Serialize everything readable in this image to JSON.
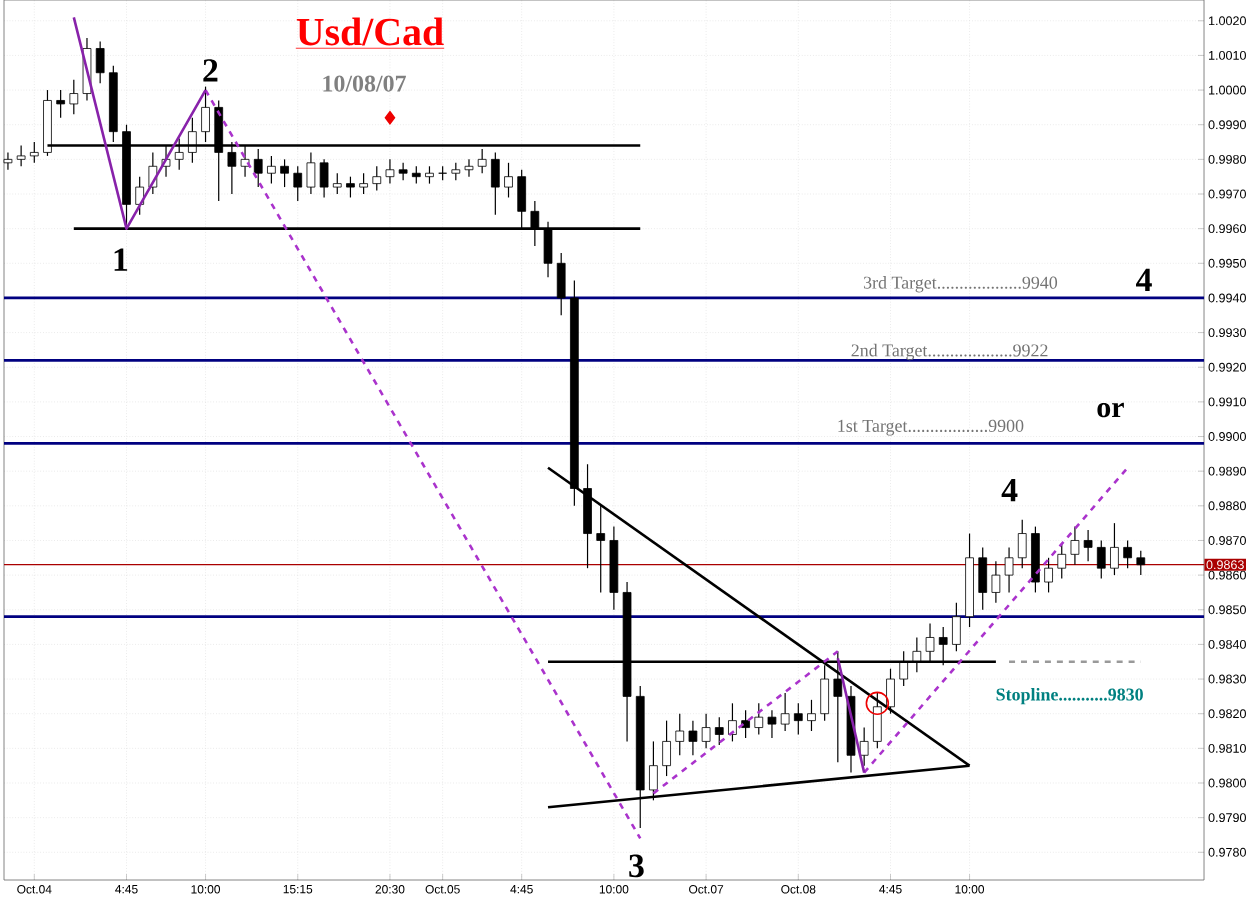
{
  "chart_data": {
    "type": "candlestick",
    "title": "Usd/Cad",
    "subtitle": "10/08/07",
    "color": "#000000",
    "grid": true,
    "ylim": [
      0.9772,
      1.0026
    ],
    "categories": [
      null,
      null,
      "Oct.04",
      null,
      null,
      null,
      null,
      null,
      null,
      "4:45",
      null,
      null,
      null,
      null,
      null,
      "10:00",
      null,
      null,
      null,
      null,
      null,
      null,
      "15:15",
      null,
      null,
      null,
      null,
      null,
      null,
      "20:30",
      null,
      null,
      null,
      "Oct.05",
      null,
      null,
      null,
      null,
      null,
      "4:45",
      null,
      null,
      null,
      null,
      null,
      null,
      "10:00",
      null,
      null,
      null,
      null,
      null,
      null,
      "Oct.07",
      null,
      null,
      null,
      null,
      null,
      null,
      "Oct.08",
      null,
      null,
      null,
      null,
      null,
      null,
      "4:45",
      null,
      null,
      null,
      null,
      null,
      "10:00",
      null,
      null,
      null,
      null,
      null,
      null,
      null,
      null,
      null,
      null,
      null,
      null,
      null
    ],
    "yticks": [
      {
        "value": 0.978,
        "label": "0.9780"
      },
      {
        "value": 0.979,
        "label": "0.9790"
      },
      {
        "value": 0.98,
        "label": "0.9800"
      },
      {
        "value": 0.981,
        "label": "0.9810"
      },
      {
        "value": 0.982,
        "label": "0.9820"
      },
      {
        "value": 0.983,
        "label": "0.9830"
      },
      {
        "value": 0.984,
        "label": "0.9840"
      },
      {
        "value": 0.985,
        "label": "0.9850"
      },
      {
        "value": 0.986,
        "label": "0.9860"
      },
      {
        "value": 0.987,
        "label": "0.9870"
      },
      {
        "value": 0.988,
        "label": "0.9880"
      },
      {
        "value": 0.989,
        "label": "0.9890"
      },
      {
        "value": 0.99,
        "label": "0.9900"
      },
      {
        "value": 0.991,
        "label": "0.9910"
      },
      {
        "value": 0.992,
        "label": "0.9920"
      },
      {
        "value": 0.993,
        "label": "0.9930"
      },
      {
        "value": 0.994,
        "label": "0.9940"
      },
      {
        "value": 0.995,
        "label": "0.9950"
      },
      {
        "value": 0.996,
        "label": "0.9960"
      },
      {
        "value": 0.997,
        "label": "0.9970"
      },
      {
        "value": 0.998,
        "label": "0.9980"
      },
      {
        "value": 0.999,
        "label": "0.9990"
      },
      {
        "value": 1.0,
        "label": "1.0000"
      },
      {
        "value": 1.001,
        "label": "1.0010"
      },
      {
        "value": 1.002,
        "label": "1.0020"
      }
    ],
    "ohlc": [
      [
        0.9979,
        0.9982,
        0.9977,
        0.998
      ],
      [
        0.998,
        0.9984,
        0.9978,
        0.9981
      ],
      [
        0.9981,
        0.9985,
        0.9979,
        0.9982
      ],
      [
        0.9982,
        1.0,
        0.9981,
        0.9997
      ],
      [
        0.9997,
        1.0,
        0.9992,
        0.9996
      ],
      [
        0.9996,
        1.0003,
        0.9993,
        0.9999
      ],
      [
        0.9999,
        1.0015,
        0.9997,
        1.0012
      ],
      [
        1.0012,
        1.0014,
        1.0002,
        1.0005
      ],
      [
        1.0005,
        1.0007,
        0.9985,
        0.9988
      ],
      [
        0.9988,
        0.999,
        0.9961,
        0.9967
      ],
      [
        0.9967,
        0.9975,
        0.9964,
        0.9972
      ],
      [
        0.9972,
        0.9982,
        0.997,
        0.9978
      ],
      [
        0.9978,
        0.9984,
        0.9975,
        0.998
      ],
      [
        0.998,
        0.9986,
        0.9977,
        0.9982
      ],
      [
        0.9982,
        0.9992,
        0.9979,
        0.9988
      ],
      [
        0.9988,
        1.0001,
        0.9985,
        0.9995
      ],
      [
        0.9995,
        0.9997,
        0.9968,
        0.9982
      ],
      [
        0.9982,
        0.9985,
        0.997,
        0.9978
      ],
      [
        0.9978,
        0.9984,
        0.9975,
        0.998
      ],
      [
        0.998,
        0.9983,
        0.9972,
        0.9976
      ],
      [
        0.9976,
        0.9981,
        0.9973,
        0.9978
      ],
      [
        0.9978,
        0.998,
        0.9972,
        0.9976
      ],
      [
        0.9976,
        0.9978,
        0.9968,
        0.9972
      ],
      [
        0.9972,
        0.9982,
        0.997,
        0.9979
      ],
      [
        0.9979,
        0.998,
        0.9969,
        0.9972
      ],
      [
        0.9972,
        0.9976,
        0.997,
        0.9973
      ],
      [
        0.9973,
        0.9975,
        0.9969,
        0.9972
      ],
      [
        0.9972,
        0.9976,
        0.997,
        0.9973
      ],
      [
        0.9973,
        0.9978,
        0.9971,
        0.9975
      ],
      [
        0.9975,
        0.998,
        0.9973,
        0.9977
      ],
      [
        0.9977,
        0.9979,
        0.9974,
        0.9976
      ],
      [
        0.9976,
        0.9978,
        0.9973,
        0.9975
      ],
      [
        0.9975,
        0.9978,
        0.9973,
        0.9976
      ],
      [
        0.9976,
        0.9978,
        0.9974,
        0.9976
      ],
      [
        0.9976,
        0.9979,
        0.9974,
        0.9977
      ],
      [
        0.9977,
        0.998,
        0.9975,
        0.9978
      ],
      [
        0.9978,
        0.9983,
        0.9976,
        0.998
      ],
      [
        0.998,
        0.9982,
        0.9964,
        0.9972
      ],
      [
        0.9972,
        0.9979,
        0.9969,
        0.9975
      ],
      [
        0.9975,
        0.9977,
        0.996,
        0.9965
      ],
      [
        0.9965,
        0.9968,
        0.9955,
        0.996
      ],
      [
        0.996,
        0.9962,
        0.9946,
        0.995
      ],
      [
        0.995,
        0.9953,
        0.9935,
        0.994
      ],
      [
        0.994,
        0.9945,
        0.988,
        0.9885
      ],
      [
        0.9885,
        0.9892,
        0.9862,
        0.9872
      ],
      [
        0.9872,
        0.988,
        0.9855,
        0.987
      ],
      [
        0.987,
        0.9874,
        0.985,
        0.9855
      ],
      [
        0.9855,
        0.9858,
        0.9812,
        0.9825
      ],
      [
        0.9825,
        0.9828,
        0.9787,
        0.9798
      ],
      [
        0.9798,
        0.9812,
        0.9795,
        0.9805
      ],
      [
        0.9805,
        0.9818,
        0.9802,
        0.9812
      ],
      [
        0.9812,
        0.982,
        0.9808,
        0.9815
      ],
      [
        0.9815,
        0.9818,
        0.9808,
        0.9812
      ],
      [
        0.9812,
        0.982,
        0.981,
        0.9816
      ],
      [
        0.9816,
        0.9819,
        0.9811,
        0.9814
      ],
      [
        0.9814,
        0.9823,
        0.9812,
        0.9818
      ],
      [
        0.9818,
        0.9821,
        0.9813,
        0.9816
      ],
      [
        0.9816,
        0.9823,
        0.9814,
        0.9819
      ],
      [
        0.9819,
        0.9821,
        0.9813,
        0.9817
      ],
      [
        0.9817,
        0.9826,
        0.9815,
        0.982
      ],
      [
        0.982,
        0.9823,
        0.9814,
        0.9818
      ],
      [
        0.9818,
        0.9824,
        0.9815,
        0.982
      ],
      [
        0.982,
        0.9834,
        0.9818,
        0.983
      ],
      [
        0.983,
        0.9838,
        0.9806,
        0.9825
      ],
      [
        0.9825,
        0.9828,
        0.9803,
        0.9808
      ],
      [
        0.9808,
        0.9816,
        0.9805,
        0.9812
      ],
      [
        0.9812,
        0.9826,
        0.981,
        0.9822
      ],
      [
        0.9822,
        0.9833,
        0.982,
        0.983
      ],
      [
        0.983,
        0.9838,
        0.9828,
        0.9835
      ],
      [
        0.9835,
        0.9842,
        0.9832,
        0.9838
      ],
      [
        0.9838,
        0.9846,
        0.9835,
        0.9842
      ],
      [
        0.9842,
        0.9845,
        0.9834,
        0.984
      ],
      [
        0.984,
        0.9852,
        0.9838,
        0.9848
      ],
      [
        0.9848,
        0.9872,
        0.9845,
        0.9865
      ],
      [
        0.9865,
        0.9868,
        0.985,
        0.9855
      ],
      [
        0.9855,
        0.9864,
        0.9852,
        0.986
      ],
      [
        0.986,
        0.9868,
        0.9855,
        0.9865
      ],
      [
        0.9865,
        0.9876,
        0.9862,
        0.9872
      ],
      [
        0.9872,
        0.9874,
        0.9855,
        0.9858
      ],
      [
        0.9858,
        0.9865,
        0.9855,
        0.9862
      ],
      [
        0.9862,
        0.9869,
        0.9859,
        0.9866
      ],
      [
        0.9866,
        0.9874,
        0.9863,
        0.987
      ],
      [
        0.987,
        0.9873,
        0.9864,
        0.9868
      ],
      [
        0.9868,
        0.987,
        0.9859,
        0.9862
      ],
      [
        0.9862,
        0.9875,
        0.986,
        0.9868
      ],
      [
        0.9868,
        0.987,
        0.9862,
        0.9865
      ],
      [
        0.9865,
        0.9867,
        0.986,
        0.9863
      ]
    ],
    "series": [
      {
        "type": "line",
        "color": "#000000",
        "values": [
          null,
          null,
          null,
          0.9984,
          null,
          null,
          null,
          null,
          null,
          null,
          null,
          null,
          null,
          null,
          null,
          null,
          null,
          null,
          null,
          null,
          null,
          null,
          null,
          null,
          null,
          null,
          null,
          null,
          null,
          null,
          null,
          null,
          null,
          null,
          null,
          null,
          null,
          null,
          null,
          null,
          null,
          null,
          null,
          null,
          null,
          null,
          null,
          null,
          0.9984,
          null,
          null,
          null,
          null,
          null,
          null,
          null,
          null,
          null,
          null,
          null,
          null,
          null,
          null,
          null,
          null,
          null,
          null,
          null,
          null,
          null,
          null,
          null,
          null,
          null,
          null,
          null,
          null,
          null,
          null,
          null,
          null,
          null,
          null,
          null,
          null,
          null,
          null
        ]
      },
      {
        "type": "line",
        "color": "#000000",
        "values": [
          null,
          null,
          null,
          null,
          null,
          0.996,
          null,
          null,
          null,
          null,
          null,
          null,
          null,
          null,
          null,
          null,
          null,
          null,
          null,
          null,
          null,
          null,
          null,
          null,
          null,
          null,
          null,
          null,
          null,
          null,
          null,
          null,
          null,
          null,
          null,
          null,
          null,
          null,
          null,
          null,
          null,
          null,
          null,
          null,
          null,
          null,
          null,
          null,
          0.996,
          null,
          null,
          null,
          null,
          null,
          null,
          null,
          null,
          null,
          null,
          null,
          null,
          null,
          null,
          null,
          null,
          null,
          null,
          null,
          null,
          null,
          null,
          null,
          null,
          null,
          null,
          null,
          null,
          null,
          null,
          null,
          null,
          null,
          null,
          null,
          null,
          null,
          null
        ]
      },
      {
        "type": "line",
        "color": "#000000",
        "values": [
          null,
          null,
          null,
          null,
          null,
          null,
          null,
          null,
          null,
          null,
          null,
          null,
          null,
          null,
          null,
          null,
          null,
          null,
          null,
          null,
          null,
          null,
          null,
          null,
          null,
          null,
          null,
          null,
          null,
          null,
          null,
          null,
          null,
          null,
          null,
          null,
          null,
          null,
          null,
          null,
          null,
          0.9891,
          null,
          null,
          null,
          null,
          null,
          null,
          null,
          null,
          null,
          null,
          null,
          null,
          null,
          null,
          null,
          null,
          null,
          null,
          null,
          null,
          null,
          null,
          null,
          null,
          null,
          null,
          null,
          null,
          null,
          null,
          null,
          0.9805,
          null,
          null,
          null,
          null,
          null,
          null,
          null,
          null,
          null,
          null,
          null,
          null,
          null
        ]
      },
      {
        "type": "line",
        "color": "#000000",
        "values": [
          null,
          null,
          null,
          null,
          null,
          null,
          null,
          null,
          null,
          null,
          null,
          null,
          null,
          null,
          null,
          null,
          null,
          null,
          null,
          null,
          null,
          null,
          null,
          null,
          null,
          null,
          null,
          null,
          null,
          null,
          null,
          null,
          null,
          null,
          null,
          null,
          null,
          null,
          null,
          null,
          null,
          0.9793,
          null,
          null,
          null,
          null,
          null,
          null,
          null,
          null,
          null,
          null,
          null,
          null,
          null,
          null,
          null,
          null,
          null,
          null,
          null,
          null,
          null,
          null,
          null,
          null,
          null,
          null,
          null,
          null,
          null,
          null,
          null,
          0.9805,
          null,
          null,
          null,
          null,
          null,
          null,
          null,
          null,
          null,
          null,
          null,
          null,
          null
        ]
      },
      {
        "type": "line",
        "color": "#000000",
        "values": [
          null,
          null,
          null,
          null,
          null,
          null,
          null,
          null,
          null,
          null,
          null,
          null,
          null,
          null,
          null,
          null,
          null,
          null,
          null,
          null,
          null,
          null,
          null,
          null,
          null,
          null,
          null,
          null,
          null,
          null,
          null,
          null,
          null,
          null,
          null,
          null,
          null,
          null,
          null,
          null,
          null,
          0.9835,
          null,
          null,
          null,
          null,
          null,
          null,
          null,
          null,
          null,
          null,
          null,
          null,
          null,
          null,
          null,
          null,
          null,
          null,
          null,
          null,
          null,
          null,
          null,
          null,
          null,
          null,
          null,
          null,
          null,
          null,
          null,
          null,
          null,
          0.9835,
          null,
          null,
          null,
          null,
          null,
          null,
          null,
          null,
          null,
          null,
          null
        ]
      },
      {
        "type": "line",
        "color": "#999999",
        "line_style": "dashed",
        "values": [
          null,
          null,
          null,
          null,
          null,
          null,
          null,
          null,
          null,
          null,
          null,
          null,
          null,
          null,
          null,
          null,
          null,
          null,
          null,
          null,
          null,
          null,
          null,
          null,
          null,
          null,
          null,
          null,
          null,
          null,
          null,
          null,
          null,
          null,
          null,
          null,
          null,
          null,
          null,
          null,
          null,
          null,
          null,
          null,
          null,
          null,
          null,
          null,
          null,
          null,
          null,
          null,
          null,
          null,
          null,
          null,
          null,
          null,
          null,
          null,
          null,
          null,
          null,
          null,
          null,
          null,
          null,
          null,
          null,
          null,
          null,
          null,
          null,
          null,
          null,
          null,
          0.9835,
          null,
          null,
          null,
          null,
          null,
          null,
          null,
          null,
          null,
          0.9835
        ]
      },
      {
        "type": "line",
        "color": "#aa33cc",
        "line_style": "dashed",
        "values": [
          null,
          null,
          null,
          null,
          null,
          null,
          null,
          null,
          null,
          null,
          null,
          null,
          null,
          null,
          null,
          1.0,
          null,
          null,
          null,
          null,
          null,
          null,
          null,
          null,
          null,
          null,
          null,
          null,
          null,
          null,
          null,
          null,
          null,
          null,
          null,
          null,
          null,
          null,
          null,
          null,
          null,
          null,
          null,
          null,
          null,
          null,
          null,
          null,
          0.9784,
          null,
          null,
          null,
          null,
          null,
          null,
          null,
          null,
          null,
          null,
          null,
          null,
          null,
          null,
          null,
          null,
          null,
          null,
          null,
          null,
          null,
          null,
          null,
          null,
          null,
          null,
          null,
          null,
          null,
          null,
          null,
          null,
          null,
          null,
          null,
          null,
          null,
          null
        ]
      },
      {
        "type": "line",
        "color": "#aa33cc",
        "line_style": "dashed",
        "values": [
          null,
          null,
          null,
          null,
          null,
          null,
          null,
          null,
          null,
          null,
          null,
          null,
          null,
          null,
          null,
          null,
          null,
          null,
          null,
          null,
          null,
          null,
          null,
          null,
          null,
          null,
          null,
          null,
          null,
          null,
          null,
          null,
          null,
          null,
          null,
          null,
          null,
          null,
          null,
          null,
          null,
          null,
          null,
          null,
          null,
          null,
          null,
          null,
          null,
          0.9797,
          null,
          null,
          null,
          null,
          null,
          null,
          null,
          null,
          null,
          null,
          null,
          null,
          null,
          0.9838,
          null,
          null,
          null,
          null,
          null,
          null,
          null,
          null,
          null,
          null,
          null,
          null,
          null,
          null,
          null,
          null,
          null,
          null,
          null,
          null,
          null,
          null,
          null
        ]
      },
      {
        "type": "line",
        "color": "#aa33cc",
        "line_style": "dashed",
        "values": [
          null,
          null,
          null,
          null,
          null,
          null,
          null,
          null,
          null,
          null,
          null,
          null,
          null,
          null,
          null,
          null,
          null,
          null,
          null,
          null,
          null,
          null,
          null,
          null,
          null,
          null,
          null,
          null,
          null,
          null,
          null,
          null,
          null,
          null,
          null,
          null,
          null,
          null,
          null,
          null,
          null,
          null,
          null,
          null,
          null,
          null,
          null,
          null,
          null,
          null,
          null,
          null,
          null,
          null,
          null,
          null,
          null,
          null,
          null,
          null,
          null,
          null,
          null,
          null,
          null,
          0.9803,
          null,
          null,
          null,
          null,
          null,
          null,
          null,
          null,
          null,
          null,
          null,
          null,
          null,
          null,
          null,
          null,
          null,
          null,
          null,
          0.9891,
          null
        ]
      },
      {
        "type": "line",
        "color": "#8822aa",
        "values": [
          null,
          null,
          null,
          null,
          null,
          1.0021,
          null,
          null,
          null,
          0.996,
          null,
          null,
          null,
          null,
          null,
          1.0,
          null,
          null,
          null,
          null,
          null,
          null,
          null,
          null,
          null,
          null,
          null,
          null,
          null,
          null,
          null,
          null,
          null,
          null,
          null,
          null,
          null,
          null,
          null,
          null,
          null,
          null,
          null,
          null,
          null,
          null,
          null,
          null,
          null,
          null,
          null,
          null,
          null,
          null,
          null,
          null,
          null,
          null,
          null,
          null,
          null,
          null,
          null,
          null,
          null,
          null,
          null,
          null,
          null,
          null,
          null,
          null,
          null,
          null,
          null,
          null,
          null,
          null,
          null,
          null,
          null,
          null,
          null,
          null,
          null,
          null,
          null
        ]
      },
      {
        "type": "line",
        "color": "#8822aa",
        "values": [
          null,
          null,
          null,
          null,
          null,
          null,
          null,
          null,
          null,
          null,
          null,
          null,
          null,
          null,
          null,
          null,
          null,
          null,
          null,
          null,
          null,
          null,
          null,
          null,
          null,
          null,
          null,
          null,
          null,
          null,
          null,
          null,
          null,
          null,
          null,
          null,
          null,
          null,
          null,
          null,
          null,
          null,
          null,
          null,
          null,
          null,
          null,
          null,
          null,
          null,
          null,
          null,
          null,
          null,
          null,
          null,
          null,
          null,
          null,
          null,
          null,
          null,
          null,
          0.9836,
          null,
          0.9803,
          null,
          null,
          null,
          null,
          null,
          null,
          null,
          null,
          null,
          null,
          null,
          null,
          null,
          null,
          null,
          null,
          null,
          null,
          null,
          null,
          null
        ]
      },
      {
        "type": "scatter",
        "color": "#ee0000",
        "marker": "diamond",
        "values": [
          null,
          null,
          null,
          null,
          null,
          null,
          null,
          null,
          null,
          null,
          null,
          null,
          null,
          null,
          null,
          null,
          null,
          null,
          null,
          null,
          null,
          null,
          null,
          null,
          null,
          null,
          null,
          null,
          null,
          0.9992,
          null,
          null,
          null,
          null,
          null,
          null,
          null,
          null,
          null,
          null,
          null,
          null,
          null,
          null,
          null,
          null,
          null,
          null,
          null,
          null,
          null,
          null,
          null,
          null,
          null,
          null,
          null,
          null,
          null,
          null,
          null,
          null,
          null,
          null,
          null,
          null,
          null,
          null,
          null,
          null,
          null,
          null,
          null,
          null,
          null,
          null,
          null,
          null,
          null,
          null,
          null,
          null,
          null,
          null,
          null,
          null,
          null
        ]
      },
      {
        "type": "scatter",
        "color": "#ee0000",
        "marker": "circle",
        "values": [
          null,
          null,
          null,
          null,
          null,
          null,
          null,
          null,
          null,
          null,
          null,
          null,
          null,
          null,
          null,
          null,
          null,
          null,
          null,
          null,
          null,
          null,
          null,
          null,
          null,
          null,
          null,
          null,
          null,
          null,
          null,
          null,
          null,
          null,
          null,
          null,
          null,
          null,
          null,
          null,
          null,
          null,
          null,
          null,
          null,
          null,
          null,
          null,
          null,
          null,
          null,
          null,
          null,
          null,
          null,
          null,
          null,
          null,
          null,
          null,
          null,
          null,
          null,
          null,
          null,
          null,
          0.9823,
          null,
          null,
          null,
          null,
          null,
          null,
          null,
          null,
          null,
          null,
          null,
          null,
          null,
          null,
          null,
          null,
          null,
          null,
          null,
          null
        ]
      }
    ],
    "ref_lines": [
      {
        "axis": "y",
        "value": 0.994,
        "color": "#000080"
      },
      {
        "axis": "y",
        "value": 0.9922,
        "color": "#000080"
      },
      {
        "axis": "y",
        "value": 0.9898,
        "color": "#000080"
      },
      {
        "axis": "y",
        "value": 0.9848,
        "color": "#000080"
      },
      {
        "axis": "y",
        "value": 0.9863,
        "color": "#aa0000",
        "label": "0.9863"
      }
    ],
    "annotations": [
      "3rd Target...................9940",
      "2nd  Target...................9922",
      "1st Target..................9900",
      "Stopline...........9830",
      "1",
      "2",
      "3",
      "4",
      "4",
      "or"
    ]
  }
}
